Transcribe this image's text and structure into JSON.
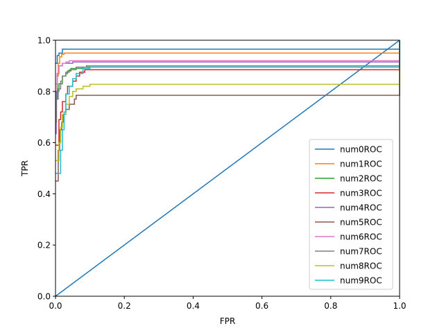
{
  "chart_data": {
    "type": "line",
    "title": "",
    "xlabel": "FPR",
    "ylabel": "TPR",
    "xlim": [
      0.0,
      1.0
    ],
    "ylim": [
      0.0,
      1.0
    ],
    "xticks": [
      "0.0",
      "0.2",
      "0.4",
      "0.6",
      "0.8",
      "1.0"
    ],
    "yticks": [
      "0.0",
      "0.2",
      "0.4",
      "0.6",
      "0.8",
      "1.0"
    ],
    "grid": false,
    "legend_position": "lower-right",
    "series": [
      {
        "name": "num0ROC",
        "color": "#1f77b4",
        "points": [
          [
            0.0,
            0.0
          ],
          [
            1.0,
            1.0
          ]
        ]
      },
      {
        "name": "num0ROC",
        "color": "#1f77b4",
        "points": [
          [
            0.0,
            0.91
          ],
          [
            0.005,
            0.91
          ],
          [
            0.005,
            0.94
          ],
          [
            0.01,
            0.94
          ],
          [
            0.01,
            0.95
          ],
          [
            0.02,
            0.95
          ],
          [
            0.02,
            0.965
          ],
          [
            1.0,
            0.965
          ],
          [
            1.0,
            1.0
          ]
        ]
      },
      {
        "name": "num1ROC",
        "color": "#ff7f0e",
        "points": [
          [
            0.0,
            0.8
          ],
          [
            0.005,
            0.8
          ],
          [
            0.005,
            0.86
          ],
          [
            0.008,
            0.86
          ],
          [
            0.008,
            0.91
          ],
          [
            0.012,
            0.91
          ],
          [
            0.012,
            0.935
          ],
          [
            0.018,
            0.935
          ],
          [
            0.018,
            0.945
          ],
          [
            0.025,
            0.945
          ],
          [
            0.025,
            0.95
          ],
          [
            1.0,
            0.95
          ],
          [
            1.0,
            1.0
          ]
        ]
      },
      {
        "name": "num2ROC",
        "color": "#2ca02c",
        "points": [
          [
            0.0,
            0.77
          ],
          [
            0.005,
            0.77
          ],
          [
            0.005,
            0.8
          ],
          [
            0.01,
            0.8
          ],
          [
            0.01,
            0.83
          ],
          [
            0.02,
            0.83
          ],
          [
            0.02,
            0.86
          ],
          [
            0.03,
            0.86
          ],
          [
            0.03,
            0.87
          ],
          [
            0.035,
            0.87
          ],
          [
            0.035,
            0.88
          ],
          [
            0.045,
            0.88
          ],
          [
            0.045,
            0.89
          ],
          [
            0.08,
            0.89
          ],
          [
            0.08,
            0.895
          ],
          [
            1.0,
            0.895
          ],
          [
            1.0,
            1.0
          ]
        ]
      },
      {
        "name": "num3ROC",
        "color": "#d62728",
        "points": [
          [
            0.0,
            0.59
          ],
          [
            0.01,
            0.59
          ],
          [
            0.01,
            0.69
          ],
          [
            0.015,
            0.69
          ],
          [
            0.015,
            0.72
          ],
          [
            0.02,
            0.72
          ],
          [
            0.02,
            0.76
          ],
          [
            0.03,
            0.76
          ],
          [
            0.03,
            0.79
          ],
          [
            0.035,
            0.79
          ],
          [
            0.035,
            0.82
          ],
          [
            0.05,
            0.82
          ],
          [
            0.05,
            0.84
          ],
          [
            0.06,
            0.84
          ],
          [
            0.06,
            0.86
          ],
          [
            0.07,
            0.86
          ],
          [
            0.07,
            0.875
          ],
          [
            0.085,
            0.875
          ],
          [
            0.085,
            0.885
          ],
          [
            1.0,
            0.885
          ],
          [
            1.0,
            1.0
          ]
        ]
      },
      {
        "name": "num4ROC",
        "color": "#9467bd",
        "points": [
          [
            0.0,
            0.635
          ],
          [
            0.002,
            0.635
          ],
          [
            0.002,
            0.8
          ],
          [
            0.005,
            0.8
          ],
          [
            0.005,
            0.87
          ],
          [
            0.01,
            0.87
          ],
          [
            0.01,
            0.9
          ],
          [
            0.02,
            0.9
          ],
          [
            0.02,
            0.91
          ],
          [
            0.05,
            0.91
          ],
          [
            0.05,
            0.915
          ],
          [
            1.0,
            0.915
          ],
          [
            1.0,
            1.0
          ]
        ]
      },
      {
        "name": "num5ROC",
        "color": "#8c564b",
        "points": [
          [
            0.0,
            0.45
          ],
          [
            0.008,
            0.45
          ],
          [
            0.008,
            0.57
          ],
          [
            0.012,
            0.57
          ],
          [
            0.012,
            0.65
          ],
          [
            0.018,
            0.65
          ],
          [
            0.018,
            0.68
          ],
          [
            0.022,
            0.68
          ],
          [
            0.022,
            0.71
          ],
          [
            0.03,
            0.71
          ],
          [
            0.03,
            0.73
          ],
          [
            0.04,
            0.73
          ],
          [
            0.04,
            0.75
          ],
          [
            0.055,
            0.75
          ],
          [
            0.055,
            0.77
          ],
          [
            0.06,
            0.77
          ],
          [
            0.06,
            0.785
          ],
          [
            1.0,
            0.785
          ],
          [
            1.0,
            1.0
          ]
        ]
      },
      {
        "name": "num6ROC",
        "color": "#e377c2",
        "points": [
          [
            0.0,
            0.83
          ],
          [
            0.005,
            0.83
          ],
          [
            0.005,
            0.87
          ],
          [
            0.01,
            0.87
          ],
          [
            0.01,
            0.9
          ],
          [
            0.02,
            0.9
          ],
          [
            0.02,
            0.91
          ],
          [
            0.03,
            0.91
          ],
          [
            0.03,
            0.915
          ],
          [
            0.04,
            0.915
          ],
          [
            0.04,
            0.92
          ],
          [
            1.0,
            0.92
          ],
          [
            1.0,
            1.0
          ]
        ]
      },
      {
        "name": "num7ROC",
        "color": "#7f7f7f",
        "points": [
          [
            0.0,
            0.68
          ],
          [
            0.003,
            0.68
          ],
          [
            0.003,
            0.77
          ],
          [
            0.008,
            0.77
          ],
          [
            0.008,
            0.81
          ],
          [
            0.015,
            0.81
          ],
          [
            0.015,
            0.84
          ],
          [
            0.02,
            0.84
          ],
          [
            0.02,
            0.86
          ],
          [
            0.03,
            0.86
          ],
          [
            0.03,
            0.875
          ],
          [
            0.04,
            0.875
          ],
          [
            0.04,
            0.885
          ],
          [
            0.06,
            0.885
          ],
          [
            0.06,
            0.895
          ],
          [
            0.09,
            0.895
          ],
          [
            0.09,
            0.9
          ],
          [
            1.0,
            0.9
          ],
          [
            1.0,
            1.0
          ]
        ]
      },
      {
        "name": "num8ROC",
        "color": "#bcbd22",
        "points": [
          [
            0.0,
            0.53
          ],
          [
            0.01,
            0.53
          ],
          [
            0.01,
            0.6
          ],
          [
            0.015,
            0.6
          ],
          [
            0.015,
            0.66
          ],
          [
            0.02,
            0.66
          ],
          [
            0.02,
            0.71
          ],
          [
            0.03,
            0.71
          ],
          [
            0.03,
            0.75
          ],
          [
            0.04,
            0.75
          ],
          [
            0.04,
            0.78
          ],
          [
            0.05,
            0.78
          ],
          [
            0.05,
            0.8
          ],
          [
            0.06,
            0.8
          ],
          [
            0.06,
            0.81
          ],
          [
            0.08,
            0.81
          ],
          [
            0.08,
            0.82
          ],
          [
            0.1,
            0.82
          ],
          [
            0.1,
            0.828
          ],
          [
            1.0,
            0.828
          ],
          [
            1.0,
            1.0
          ]
        ]
      },
      {
        "name": "num9ROC",
        "color": "#17becf",
        "points": [
          [
            0.0,
            0.48
          ],
          [
            0.015,
            0.48
          ],
          [
            0.015,
            0.57
          ],
          [
            0.02,
            0.57
          ],
          [
            0.02,
            0.65
          ],
          [
            0.025,
            0.65
          ],
          [
            0.025,
            0.72
          ],
          [
            0.03,
            0.72
          ],
          [
            0.03,
            0.79
          ],
          [
            0.04,
            0.79
          ],
          [
            0.04,
            0.82
          ],
          [
            0.05,
            0.82
          ],
          [
            0.05,
            0.85
          ],
          [
            0.06,
            0.85
          ],
          [
            0.06,
            0.87
          ],
          [
            0.08,
            0.87
          ],
          [
            0.08,
            0.89
          ],
          [
            0.1,
            0.89
          ],
          [
            0.1,
            0.895
          ],
          [
            1.0,
            0.895
          ],
          [
            1.0,
            1.0
          ]
        ]
      }
    ],
    "legend": [
      {
        "name": "num0ROC",
        "color": "#1f77b4"
      },
      {
        "name": "num1ROC",
        "color": "#ff7f0e"
      },
      {
        "name": "num2ROC",
        "color": "#2ca02c"
      },
      {
        "name": "num3ROC",
        "color": "#d62728"
      },
      {
        "name": "num4ROC",
        "color": "#9467bd"
      },
      {
        "name": "num5ROC",
        "color": "#8c564b"
      },
      {
        "name": "num6ROC",
        "color": "#e377c2"
      },
      {
        "name": "num7ROC",
        "color": "#7f7f7f"
      },
      {
        "name": "num8ROC",
        "color": "#bcbd22"
      },
      {
        "name": "num9ROC",
        "color": "#17becf"
      }
    ]
  }
}
